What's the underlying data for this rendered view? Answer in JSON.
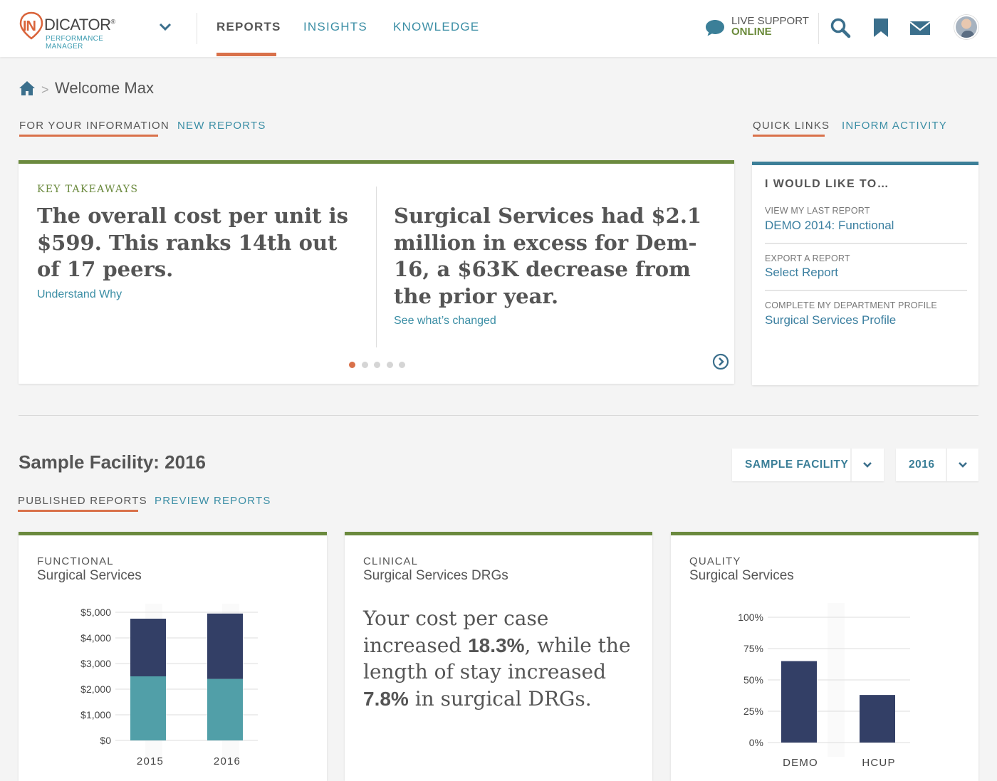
{
  "header": {
    "logo_in": "IN",
    "logo_main": "DICATOR",
    "logo_reg": "®",
    "logo_sub": "PERFORMANCE MANAGER",
    "nav": [
      {
        "label": "REPORTS",
        "active": true
      },
      {
        "label": "INSIGHTS",
        "active": false
      },
      {
        "label": "KNOWLEDGE",
        "active": false
      }
    ],
    "support_label": "LIVE SUPPORT",
    "support_status": "ONLINE"
  },
  "breadcrumb": {
    "separator": ">",
    "title": "Welcome Max"
  },
  "info_tabs": [
    "FOR YOUR INFORMATION",
    "NEW REPORTS"
  ],
  "quick_tabs": [
    "QUICK LINKS",
    "INFORM ACTIVITY"
  ],
  "takeaways": {
    "label": "KEY TAKEAWAYS",
    "items": [
      {
        "headline": "The overall cost per unit is $599. This ranks 14th out of 17 peers.",
        "link": "Understand Why"
      },
      {
        "headline": "Surgical Services had $2.1 million in excess for Dem-16, a $63K decrease from the prior year.",
        "link": "See what’s changed"
      }
    ],
    "slide_count": 5,
    "active_slide": 1
  },
  "quick_links": {
    "title": "I WOULD LIKE TO…",
    "items": [
      {
        "label": "VIEW MY LAST REPORT",
        "link": "DEMO 2014: Functional"
      },
      {
        "label": "EXPORT A REPORT",
        "link": "Select Report"
      },
      {
        "label": "COMPLETE MY DEPARTMENT PROFILE",
        "link": "Surgical Services Profile"
      }
    ]
  },
  "facility": {
    "title": "Sample Facility: 2016",
    "facility_select": "SAMPLE FACILITY",
    "year_select": "2016"
  },
  "report_tabs": [
    "PUBLISHED REPORTS",
    "PREVIEW REPORTS"
  ],
  "report_cards": [
    {
      "category": "FUNCTIONAL",
      "title": "Surgical Services"
    },
    {
      "category": "CLINICAL",
      "title": "Surgical Services DRGs",
      "text_parts": [
        "Your cost per case increased ",
        "18.3%",
        ", while the length of stay increased ",
        "7.8%",
        " in surgical DRGs."
      ]
    },
    {
      "category": "QUALITY",
      "title": "Surgical Services"
    }
  ],
  "colors": {
    "accent_orange": "#d9714a",
    "link_blue": "#3b8ea5",
    "green": "#6b8a3e",
    "navy": "#333f66",
    "teal": "#519fa8"
  },
  "chart_data": [
    {
      "type": "bar",
      "stacked": true,
      "categories": [
        "2015",
        "2016"
      ],
      "series": [
        {
          "values": [
            2500,
            2400
          ],
          "color": "#519fa8"
        },
        {
          "values": [
            2250,
            2550
          ],
          "color": "#333f66"
        }
      ],
      "yticks": [
        "$5,000",
        "$4,000",
        "$3,000",
        "$2,000",
        "$1,000",
        "$0"
      ],
      "ylim": [
        0,
        5000
      ]
    },
    {
      "type": "bar",
      "categories": [
        "DEMO",
        "HCUP"
      ],
      "values": [
        65,
        38
      ],
      "yticks": [
        "100%",
        "75%",
        "50%",
        "25%",
        "0%"
      ],
      "ylim": [
        0,
        100
      ]
    }
  ]
}
